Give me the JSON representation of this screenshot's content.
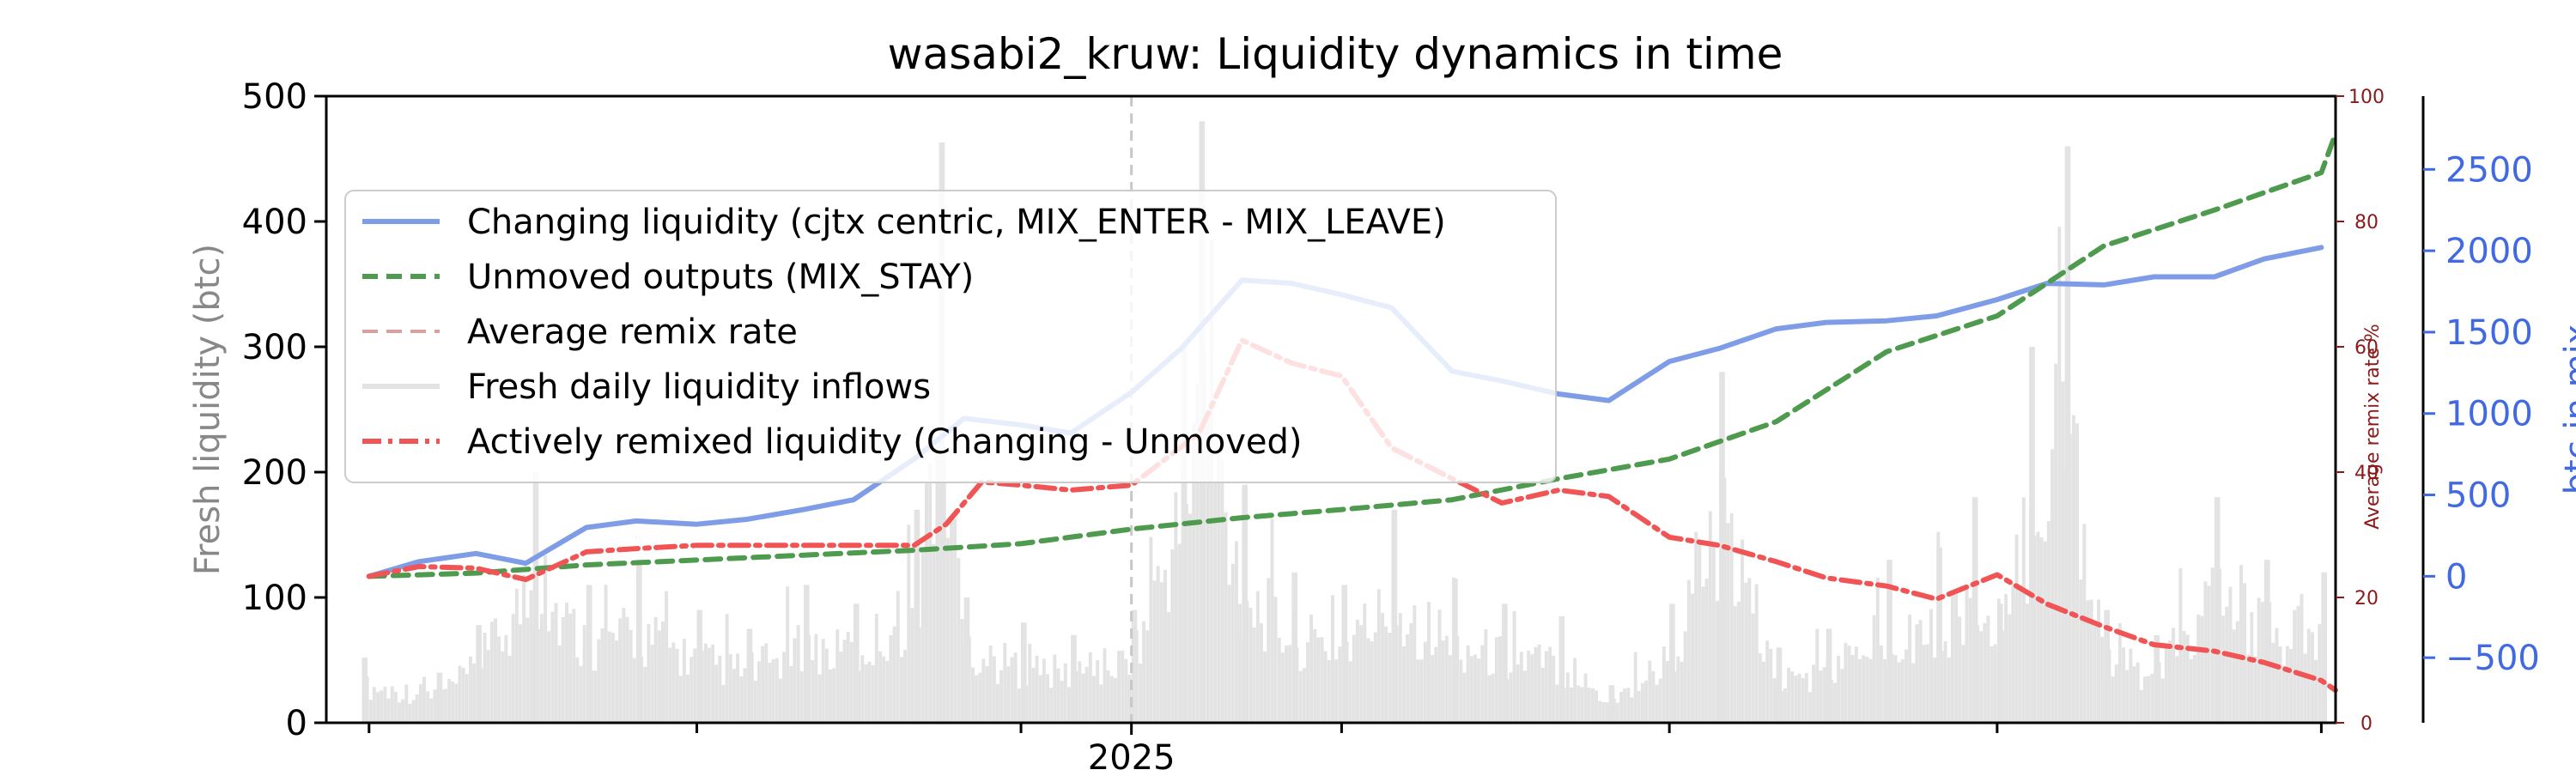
{
  "chart_data": {
    "type": "line",
    "title": "wasabi2_kruw: Liquidity dynamics in time",
    "xlabel": "",
    "x_tick_labels": [
      "2025"
    ],
    "x_range": [
      "2024-05-20",
      "2025-12-05"
    ],
    "x_major_ticks": [
      "2024-06-01",
      "2024-09-01",
      "2024-12-01",
      "2025-03-01",
      "2025-06-01",
      "2025-09-01",
      "2025-12-01"
    ],
    "x_labeled_tick": "2025-01-01",
    "year_marker_date": "2025-01-01",
    "grid": false,
    "legend_placement": "upper-left",
    "axes": {
      "left": {
        "label": "Fresh liquidity (btc)",
        "ylim": [
          0,
          500
        ],
        "ticks": [
          0,
          100,
          200,
          300,
          400,
          500
        ],
        "color": "#888888"
      },
      "right_remix": {
        "label": "Average remix rate %",
        "ylim": [
          0,
          100
        ],
        "ticks": [
          0,
          20,
          40,
          60,
          80,
          100
        ],
        "color": "#8b1a1a"
      },
      "right_btc": {
        "label": "btc in mix",
        "ylim": [
          -900,
          2950
        ],
        "ticks": [
          -500,
          0,
          500,
          1000,
          1500,
          2000,
          2500
        ],
        "tick_labels": [
          "−500",
          "0",
          "500",
          "1000",
          "1500",
          "2000",
          "2500"
        ],
        "color": "#4169e1"
      }
    },
    "legend": [
      {
        "label": "Changing liquidity (cjtx centric, MIX_ENTER - MIX_LEAVE)",
        "color": "#7f9ce6",
        "style": "solid"
      },
      {
        "label": "Unmoved outputs (MIX_STAY)",
        "color": "#4e9a4e",
        "style": "dashed"
      },
      {
        "label": "Average remix rate",
        "color": "#d9a0a0",
        "style": "dashed"
      },
      {
        "label": "Fresh daily liquidity inflows",
        "color": "#e3e3e3",
        "style": "solid"
      },
      {
        "label": "Actively remixed liquidity (Changing - Unmoved)",
        "color": "#f05454",
        "style": "dashdot"
      }
    ],
    "series": [
      {
        "name": "Changing liquidity (cjtx centric, MIX_ENTER - MIX_LEAVE)",
        "axis": "right_btc",
        "color": "#7f9ce6",
        "x": [
          "2024-06-01",
          "2024-06-15",
          "2024-07-01",
          "2024-07-15",
          "2024-08-01",
          "2024-08-15",
          "2024-09-01",
          "2024-09-15",
          "2024-10-01",
          "2024-10-15",
          "2024-11-01",
          "2024-11-15",
          "2024-12-01",
          "2024-12-15",
          "2025-01-01",
          "2025-01-15",
          "2025-02-01",
          "2025-02-15",
          "2025-03-01",
          "2025-03-15",
          "2025-04-01",
          "2025-04-15",
          "2025-05-01",
          "2025-05-15",
          "2025-06-01",
          "2025-06-15",
          "2025-07-01",
          "2025-07-15",
          "2025-08-01",
          "2025-08-15",
          "2025-09-01",
          "2025-09-15",
          "2025-10-01",
          "2025-10-15",
          "2025-11-01",
          "2025-11-15",
          "2025-12-01"
        ],
        "y": [
          0,
          90,
          140,
          80,
          300,
          340,
          320,
          350,
          410,
          470,
          720,
          970,
          930,
          880,
          1130,
          1400,
          1820,
          1800,
          1730,
          1650,
          1260,
          1200,
          1120,
          1080,
          1320,
          1400,
          1520,
          1560,
          1570,
          1600,
          1700,
          1800,
          1790,
          1840,
          1840,
          1950,
          2020
        ]
      },
      {
        "name": "Unmoved outputs (MIX_STAY)",
        "axis": "right_btc",
        "color": "#4e9a4e",
        "x": [
          "2024-06-01",
          "2024-07-01",
          "2024-08-01",
          "2024-09-01",
          "2024-10-01",
          "2024-11-01",
          "2024-12-01",
          "2025-01-01",
          "2025-02-01",
          "2025-03-01",
          "2025-04-01",
          "2025-05-01",
          "2025-06-01",
          "2025-07-01",
          "2025-08-01",
          "2025-09-01",
          "2025-10-01",
          "2025-11-01",
          "2025-12-01",
          "2025-12-05"
        ],
        "y": [
          0,
          20,
          70,
          100,
          130,
          160,
          200,
          290,
          360,
          410,
          470,
          600,
          720,
          950,
          1380,
          1600,
          2030,
          2250,
          2480,
          2720
        ]
      },
      {
        "name": "Actively remixed liquidity (Changing - Unmoved)",
        "axis": "right_btc",
        "color": "#f05454",
        "x": [
          "2024-06-01",
          "2024-06-15",
          "2024-07-01",
          "2024-07-15",
          "2024-08-01",
          "2024-08-15",
          "2024-09-01",
          "2024-10-01",
          "2024-11-01",
          "2024-11-10",
          "2024-11-20",
          "2024-12-01",
          "2024-12-15",
          "2025-01-01",
          "2025-01-20",
          "2025-02-01",
          "2025-02-15",
          "2025-03-01",
          "2025-03-15",
          "2025-04-01",
          "2025-04-15",
          "2025-05-01",
          "2025-05-15",
          "2025-06-01",
          "2025-06-15",
          "2025-07-01",
          "2025-07-15",
          "2025-08-01",
          "2025-08-15",
          "2025-09-01",
          "2025-09-15",
          "2025-10-01",
          "2025-10-15",
          "2025-11-01",
          "2025-11-15",
          "2025-12-01",
          "2025-12-05"
        ],
        "y": [
          0,
          60,
          50,
          -20,
          150,
          170,
          190,
          190,
          190,
          320,
          580,
          560,
          530,
          560,
          880,
          1450,
          1310,
          1230,
          790,
          600,
          450,
          530,
          490,
          240,
          190,
          90,
          -10,
          -60,
          -140,
          10,
          -170,
          -310,
          -420,
          -460,
          -530,
          -640,
          -700
        ]
      }
    ],
    "inflows": {
      "name": "Fresh daily liquidity inflows",
      "axis": "left",
      "color": "#e3e3e3",
      "x": [
        "2024-05-30",
        "2024-06-20",
        "2024-07-01",
        "2024-07-17",
        "2024-08-01",
        "2024-08-15",
        "2024-09-01",
        "2024-09-15",
        "2024-10-01",
        "2024-10-15",
        "2024-11-01",
        "2024-11-08",
        "2024-11-15",
        "2024-12-01",
        "2024-12-15",
        "2025-01-01",
        "2025-01-15",
        "2025-01-20",
        "2025-02-01",
        "2025-02-15",
        "2025-03-01",
        "2025-03-15",
        "2025-04-01",
        "2025-04-15",
        "2025-05-01",
        "2025-05-15",
        "2025-06-01",
        "2025-06-15",
        "2025-07-01",
        "2025-07-15",
        "2025-08-01",
        "2025-08-15",
        "2025-08-25",
        "2025-09-01",
        "2025-09-10",
        "2025-09-20",
        "2025-10-01",
        "2025-10-15",
        "2025-11-01",
        "2025-11-15",
        "2025-12-01"
      ],
      "y": [
        52,
        40,
        78,
        200,
        110,
        130,
        90,
        75,
        110,
        95,
        170,
        463,
        100,
        80,
        70,
        90,
        300,
        480,
        190,
        120,
        110,
        170,
        115,
        95,
        85,
        30,
        95,
        280,
        60,
        75,
        130,
        140,
        180,
        95,
        300,
        460,
        90,
        70,
        180,
        130,
        120
      ]
    }
  }
}
